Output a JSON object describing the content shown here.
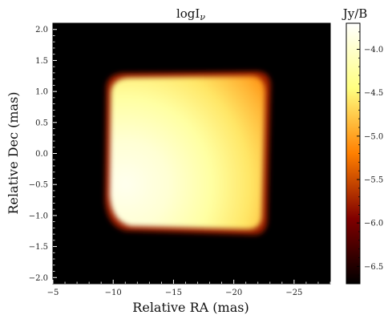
{
  "chart_data": {
    "type": "heatmap",
    "title": "logI",
    "title_subscript": "ν",
    "xlabel": "Relative RA (mas)",
    "ylabel": "Relative Dec (mas)",
    "colorbar_label": "Jy/B",
    "xlim": [
      -5,
      -28
    ],
    "ylim": [
      -2.1,
      2.1
    ],
    "x_ticks": [
      -5,
      -10,
      -15,
      -20,
      -25
    ],
    "x_tick_labels": [
      "−5",
      "−10",
      "−15",
      "−20",
      "−25"
    ],
    "y_ticks": [
      2.0,
      1.5,
      1.0,
      0.5,
      0.0,
      -0.5,
      -1.0,
      -1.5,
      -2.0
    ],
    "y_tick_labels": [
      "2.0",
      "1.5",
      "1.0",
      "0.5",
      "0.0",
      "−0.5",
      "−1.0",
      "−1.5",
      "−2.0"
    ],
    "colorbar_range": [
      -6.7,
      -3.7
    ],
    "colorbar_ticks": [
      -4.0,
      -4.5,
      -5.0,
      -5.5,
      -6.0,
      -6.5
    ],
    "colorbar_tick_labels": [
      "−4.0",
      "−4.5",
      "−5.0",
      "−5.5",
      "−6.0",
      "−6.5"
    ],
    "colormap": "afmhot",
    "background_value": -6.7,
    "emission_region": {
      "ra_range": [
        -9.3,
        -23.0
      ],
      "dec_range": [
        -1.3,
        1.3
      ],
      "peak_at": [
        -11.0,
        -0.5
      ],
      "peak_value": -3.8,
      "edge_value": -5.8
    }
  }
}
